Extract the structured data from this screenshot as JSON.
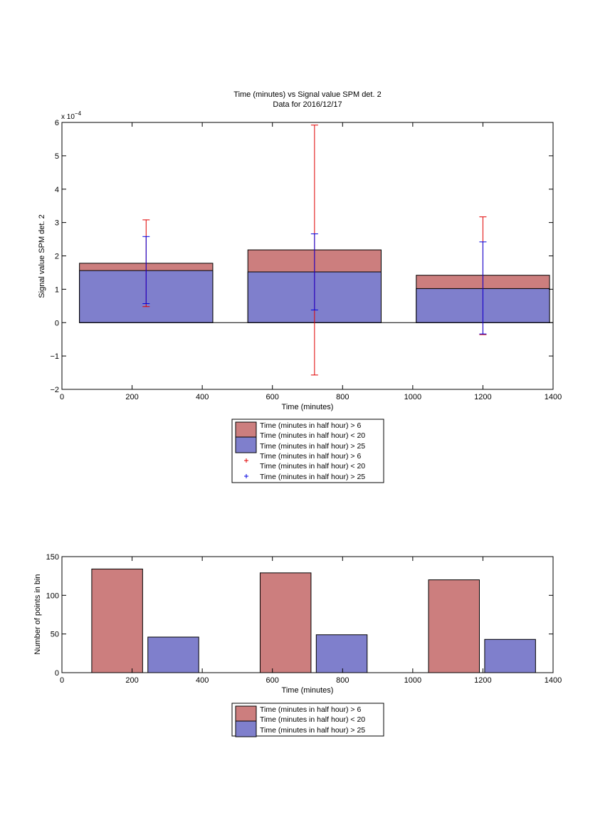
{
  "chart_data": [
    {
      "type": "bar",
      "title": "Time (minutes) vs Signal value SPM det. 2",
      "subtitle": "Data for 2016/12/17",
      "xlabel": "Time (minutes)",
      "ylabel": "Signal value SPM det. 2",
      "y_exponent_label": "x 10",
      "y_exponent_power": "−4",
      "xlim": [
        0,
        1400
      ],
      "ylim": [
        -2,
        6
      ],
      "xticks": [
        "0",
        "200",
        "400",
        "600",
        "800",
        "1000",
        "1200",
        "1400"
      ],
      "yticks": [
        "−2",
        "−1",
        "0",
        "1",
        "2",
        "3",
        "4",
        "5",
        "6"
      ],
      "grid": false,
      "legend_position": "below",
      "bar_ranges": [
        [
          50,
          430
        ],
        [
          530,
          910
        ],
        [
          1010,
          1390
        ]
      ],
      "series": [
        {
          "name": "Time (minutes in half hour) > 6",
          "name_line2": "Time (minutes in half hour) < 20",
          "color": "#cc7e7e",
          "values": [
            1.78,
            2.18,
            1.42
          ]
        },
        {
          "name": "Time (minutes in half hour) > 25",
          "color": "#7f7fcc",
          "values": [
            1.56,
            1.52,
            1.02
          ]
        }
      ],
      "error_bars": [
        {
          "name": "Time (minutes in half hour) > 6",
          "name_line2": "Time (minutes in half hour) < 20",
          "color": "#e00000",
          "x": [
            240,
            720,
            1200
          ],
          "low": [
            0.48,
            -1.57,
            -0.36
          ],
          "high": [
            3.08,
            5.92,
            3.17
          ]
        },
        {
          "name": "Time (minutes in half hour) > 25",
          "color": "#0000e0",
          "x": [
            240,
            720,
            1200
          ],
          "low": [
            0.57,
            0.38,
            -0.34
          ],
          "high": [
            2.58,
            2.66,
            2.42
          ]
        }
      ]
    },
    {
      "type": "bar",
      "xlabel": "Time (minutes)",
      "ylabel": "Number of points in bin",
      "xlim": [
        0,
        1400
      ],
      "ylim": [
        0,
        150
      ],
      "xticks": [
        "0",
        "200",
        "400",
        "600",
        "800",
        "1000",
        "1200",
        "1400"
      ],
      "yticks": [
        "0",
        "50",
        "100",
        "150"
      ],
      "grid": false,
      "legend_position": "below",
      "series": [
        {
          "name": "Time (minutes in half hour) > 6",
          "name_line2": "Time (minutes in half hour) < 20",
          "color": "#cc7e7e",
          "ranges": [
            [
              85,
              230
            ],
            [
              565,
              710
            ],
            [
              1045,
              1190
            ]
          ],
          "values": [
            134,
            129,
            120
          ]
        },
        {
          "name": "Time (minutes in half hour) > 25",
          "color": "#7f7fcc",
          "ranges": [
            [
              245,
              390
            ],
            [
              725,
              870
            ],
            [
              1205,
              1350
            ]
          ],
          "values": [
            46,
            49,
            43
          ]
        }
      ]
    }
  ]
}
